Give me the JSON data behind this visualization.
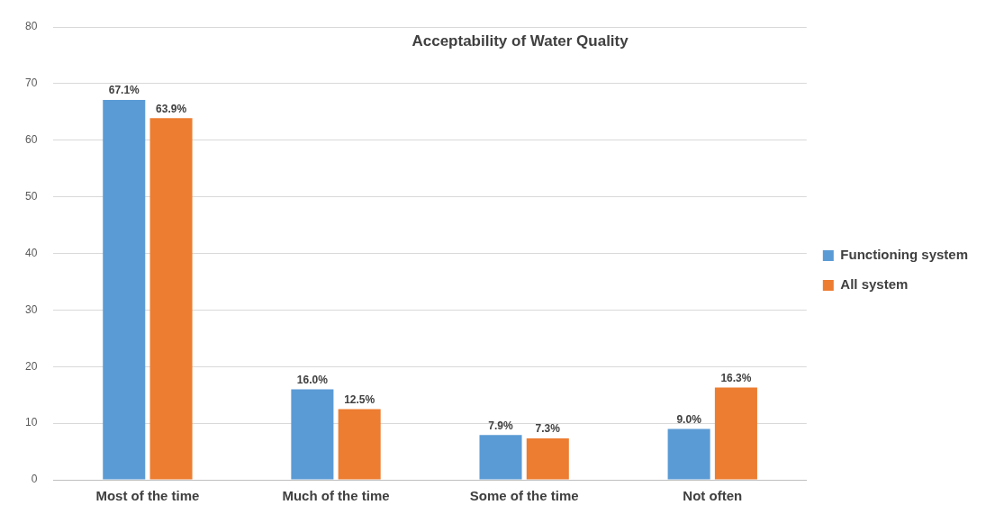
{
  "chart_data": {
    "type": "bar",
    "title": "Acceptability of Water Quality",
    "categories": [
      "Most of the time",
      "Much of the time",
      "Some of the time",
      "Not often"
    ],
    "series": [
      {
        "name": "Functioning system",
        "color": "#5b9bd5",
        "values": [
          67.1,
          16.0,
          7.9,
          9.0
        ],
        "value_labels": [
          "67.1%",
          "16.0%",
          "7.9%",
          "9.0%"
        ]
      },
      {
        "name": "All system",
        "color": "#ed7d31",
        "values": [
          63.9,
          12.5,
          7.3,
          16.3
        ],
        "value_labels": [
          "63.9%",
          "12.5%",
          "7.3%",
          "16.3%"
        ]
      }
    ],
    "ylim": [
      0,
      80
    ],
    "yticks": [
      0,
      10,
      20,
      30,
      40,
      50,
      60,
      70,
      80
    ],
    "grid": "y",
    "legend": "right"
  }
}
